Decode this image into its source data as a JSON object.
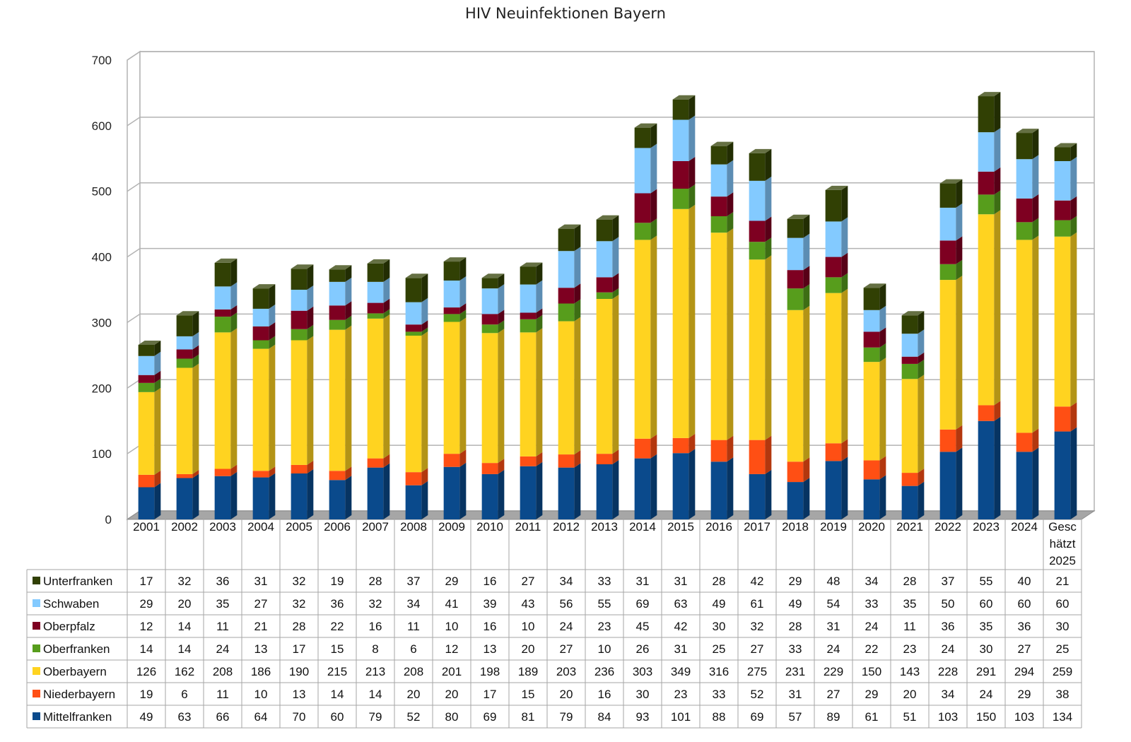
{
  "chart_data": {
    "type": "bar",
    "stacked": true,
    "title": "HIV Neuinfektionen  Bayern",
    "xlabel": "",
    "ylabel": "",
    "ylim": [
      0,
      700
    ],
    "yticks": [
      "0",
      "100",
      "200",
      "300",
      "400",
      "500",
      "600",
      "700"
    ],
    "grid": true,
    "legend": "data-table-left",
    "categories": [
      "2001",
      "2002",
      "2003",
      "2004",
      "2005",
      "2006",
      "2007",
      "2008",
      "2009",
      "2010",
      "2011",
      "2012",
      "2013",
      "2014",
      "2015",
      "2016",
      "2017",
      "2018",
      "2019",
      "2020",
      "2021",
      "2022",
      "2023",
      "2024",
      "Gesc hätzt 2025"
    ],
    "category_lines": [
      [
        "2001"
      ],
      [
        "2002"
      ],
      [
        "2003"
      ],
      [
        "2004"
      ],
      [
        "2005"
      ],
      [
        "2006"
      ],
      [
        "2007"
      ],
      [
        "2008"
      ],
      [
        "2009"
      ],
      [
        "2010"
      ],
      [
        "2011"
      ],
      [
        "2012"
      ],
      [
        "2013"
      ],
      [
        "2014"
      ],
      [
        "2015"
      ],
      [
        "2016"
      ],
      [
        "2017"
      ],
      [
        "2018"
      ],
      [
        "2019"
      ],
      [
        "2020"
      ],
      [
        "2021"
      ],
      [
        "2022"
      ],
      [
        "2023"
      ],
      [
        "2024"
      ],
      [
        "Gesc",
        "hätzt",
        "2025"
      ]
    ],
    "series": [
      {
        "name": "Mittelfranken",
        "color": "#0a4a8c",
        "values": [
          49,
          63,
          66,
          64,
          70,
          60,
          79,
          52,
          80,
          69,
          81,
          79,
          84,
          93,
          101,
          88,
          69,
          57,
          89,
          61,
          51,
          103,
          150,
          103,
          134
        ]
      },
      {
        "name": "Niederbayern",
        "color": "#ff4f14",
        "values": [
          19,
          6,
          11,
          10,
          13,
          14,
          14,
          20,
          20,
          17,
          15,
          20,
          16,
          30,
          23,
          33,
          52,
          31,
          27,
          29,
          20,
          34,
          24,
          29,
          38
        ]
      },
      {
        "name": "Oberbayern",
        "color": "#ffd320",
        "values": [
          126,
          162,
          208,
          186,
          190,
          215,
          213,
          208,
          201,
          198,
          189,
          203,
          236,
          303,
          349,
          316,
          275,
          231,
          229,
          150,
          143,
          228,
          291,
          294,
          259
        ]
      },
      {
        "name": "Oberfranken",
        "color": "#579d1c",
        "values": [
          14,
          14,
          24,
          13,
          17,
          15,
          8,
          6,
          12,
          13,
          20,
          27,
          10,
          26,
          31,
          25,
          27,
          33,
          24,
          22,
          23,
          24,
          30,
          27,
          25
        ]
      },
      {
        "name": "Oberpfalz",
        "color": "#7e0021",
        "values": [
          12,
          14,
          11,
          21,
          28,
          22,
          16,
          11,
          10,
          16,
          10,
          24,
          23,
          45,
          42,
          30,
          32,
          28,
          31,
          24,
          11,
          36,
          35,
          36,
          30
        ]
      },
      {
        "name": "Schwaben",
        "color": "#83caff",
        "values": [
          29,
          20,
          35,
          27,
          32,
          36,
          32,
          34,
          41,
          39,
          43,
          56,
          55,
          69,
          63,
          49,
          61,
          49,
          54,
          33,
          35,
          50,
          60,
          60,
          60
        ]
      },
      {
        "name": "Unterfranken",
        "color": "#314004",
        "values": [
          17,
          32,
          36,
          31,
          32,
          19,
          28,
          37,
          29,
          16,
          27,
          34,
          33,
          31,
          31,
          28,
          42,
          29,
          48,
          34,
          28,
          37,
          55,
          40,
          21
        ]
      }
    ]
  }
}
